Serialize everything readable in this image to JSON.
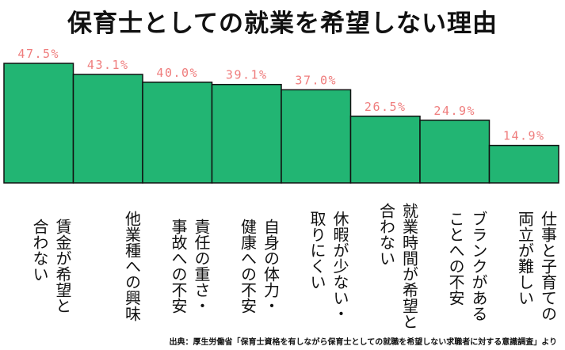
{
  "title": "保育士としての就業を希望しない理由",
  "source": "出典：厚生労働省「保育士資格を有しながら保育士としての就職を希望しない求職者に対する意識調査」より",
  "colors": {
    "bar": "#22b573",
    "bar_stroke": "#111111",
    "value_label": "#ef7d7d"
  },
  "chart_data": {
    "type": "bar",
    "title": "保育士としての就業を希望しない理由",
    "xlabel": "",
    "ylabel": "",
    "ylim": [
      0,
      47.5
    ],
    "unit": "%",
    "categories": [
      "賃金が希望と\n合わない",
      "他業種への興味",
      "責任の重さ・\n事故への不安",
      "自身の体力・\n健康への不安",
      "休暇が少ない・\n取りにくい",
      "就業時間が希望と\n合わない",
      "ブランクがある\nことへの不安",
      "仕事と子育ての\n両立が難しい"
    ],
    "values": [
      47.5,
      43.1,
      40.0,
      39.1,
      37.0,
      26.5,
      24.9,
      14.9
    ],
    "value_labels": [
      "47.5%",
      "43.1%",
      "40.0%",
      "39.1%",
      "37.0%",
      "26.5%",
      "24.9%",
      "14.9%"
    ]
  }
}
